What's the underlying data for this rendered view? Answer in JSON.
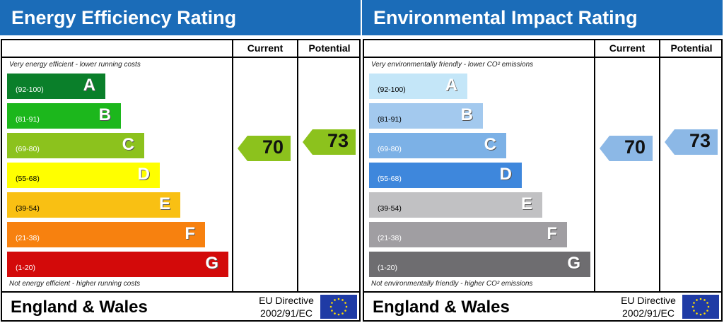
{
  "chart_data": [
    {
      "type": "bar",
      "title": "Energy Efficiency Rating",
      "columns": [
        "Current",
        "Potential"
      ],
      "top_note": "Very energy efficient - lower running costs",
      "bottom_note": "Not energy efficient - higher running costs",
      "bands": [
        {
          "letter": "A",
          "range": "(92-100)",
          "color": "#0a7f2a",
          "text": "#fff"
        },
        {
          "letter": "B",
          "range": "(81-91)",
          "color": "#1cb71c",
          "text": "#fff"
        },
        {
          "letter": "C",
          "range": "(69-80)",
          "color": "#8cc21d",
          "text": "#fff"
        },
        {
          "letter": "D",
          "range": "(55-68)",
          "color": "#ffff00",
          "text": "#000"
        },
        {
          "letter": "E",
          "range": "(39-54)",
          "color": "#f9c013",
          "text": "#000"
        },
        {
          "letter": "F",
          "range": "(21-38)",
          "color": "#f7810f",
          "text": "#fff"
        },
        {
          "letter": "G",
          "range": "(1-20)",
          "color": "#d30a0a",
          "text": "#fff"
        }
      ],
      "current": 70,
      "potential": 73,
      "current_color": "#8cc21d",
      "potential_color": "#8cc21d",
      "region": "England & Wales",
      "directive_line1": "EU Directive",
      "directive_line2": "2002/91/EC"
    },
    {
      "type": "bar",
      "title": "Environmental Impact Rating",
      "columns": [
        "Current",
        "Potential"
      ],
      "top_note": "Very environmentally friendly - lower CO² emissions",
      "bottom_note": "Not environmentally friendly - higher CO² emissions",
      "bands": [
        {
          "letter": "A",
          "range": "(92-100)",
          "color": "#c4e6f8",
          "text": "#000"
        },
        {
          "letter": "B",
          "range": "(81-91)",
          "color": "#a3c9ee",
          "text": "#000"
        },
        {
          "letter": "C",
          "range": "(69-80)",
          "color": "#7cb1e6",
          "text": "#fff"
        },
        {
          "letter": "D",
          "range": "(55-68)",
          "color": "#3e87dc",
          "text": "#fff"
        },
        {
          "letter": "E",
          "range": "(39-54)",
          "color": "#c1c1c3",
          "text": "#000"
        },
        {
          "letter": "F",
          "range": "(21-38)",
          "color": "#a09ea2",
          "text": "#fff"
        },
        {
          "letter": "G",
          "range": "(1-20)",
          "color": "#6e6d70",
          "text": "#fff"
        }
      ],
      "current": 70,
      "potential": 73,
      "current_color": "#8cb8e6",
      "potential_color": "#8cb8e6",
      "region": "England & Wales",
      "directive_line1": "EU Directive",
      "directive_line2": "2002/91/EC"
    }
  ]
}
